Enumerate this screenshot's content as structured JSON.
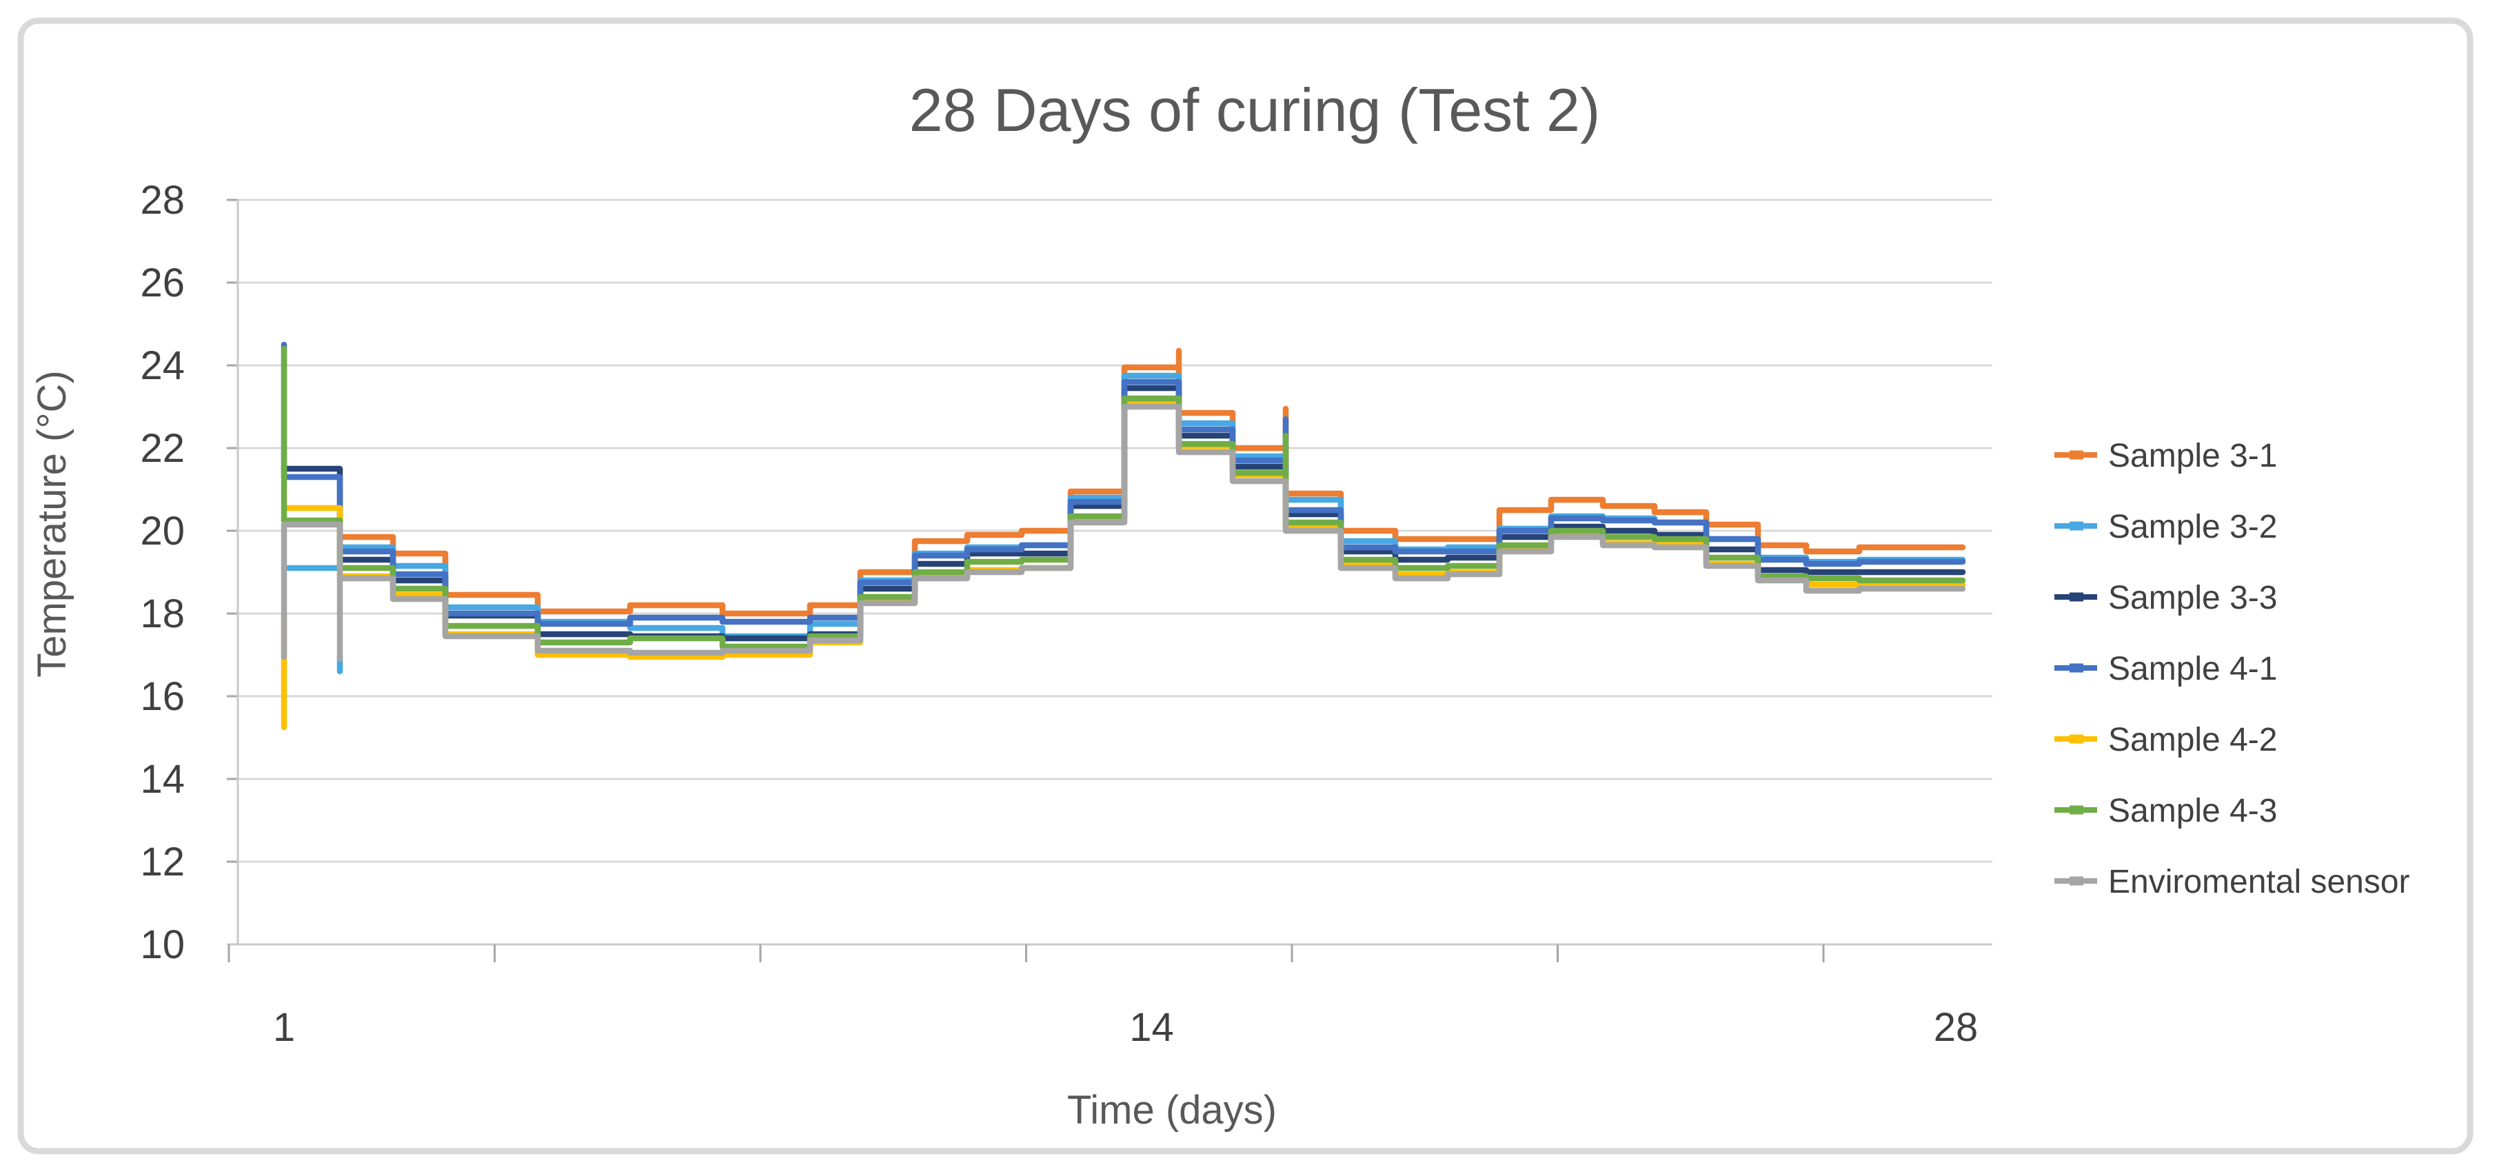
{
  "chart_data": {
    "type": "line",
    "title": "28 Days of curing (Test 2)",
    "xlabel": "Time (days)",
    "ylabel": "Temperature (°C)",
    "ylim": [
      10,
      28
    ],
    "y_tick_step": 2,
    "y_tick_labels": [
      28,
      26,
      24,
      22,
      20,
      18,
      16,
      14,
      12,
      10
    ],
    "xticks": [
      1,
      14,
      28
    ],
    "grid": true,
    "legend_position": "right",
    "x": [
      1,
      2,
      3,
      4,
      5,
      6,
      7,
      8,
      9,
      10,
      11,
      12,
      13,
      14,
      15,
      16,
      17,
      18,
      19,
      20,
      21,
      22,
      23,
      24,
      25,
      26,
      27,
      28
    ],
    "series": [
      {
        "name": "Sample 3-1",
        "color": "#ED7D31",
        "values": [
          null,
          19.85,
          19.45,
          18.45,
          18.05,
          18.2,
          18.0,
          18.2,
          19.0,
          19.75,
          19.9,
          20.0,
          20.95,
          23.95,
          22.85,
          22.0,
          20.9,
          20.0,
          19.8,
          19.8,
          20.5,
          20.75,
          20.6,
          20.45,
          20.15,
          19.65,
          19.5,
          19.6
        ]
      },
      {
        "name": "Sample 3-2",
        "color": "#47A8E4",
        "values": [
          19.1,
          19.6,
          19.15,
          18.15,
          17.8,
          17.65,
          17.45,
          17.75,
          18.8,
          19.45,
          19.6,
          19.65,
          20.8,
          23.75,
          22.6,
          21.8,
          20.75,
          19.75,
          19.55,
          19.6,
          20.05,
          20.35,
          20.3,
          20.2,
          19.8,
          19.35,
          19.25,
          19.3
        ]
      },
      {
        "name": "Sample 3-3",
        "color": "#264478",
        "values": [
          21.5,
          19.3,
          18.8,
          17.95,
          17.5,
          17.45,
          17.4,
          17.5,
          18.6,
          19.2,
          19.45,
          19.45,
          20.6,
          23.45,
          22.3,
          21.55,
          20.4,
          19.5,
          19.3,
          19.35,
          19.85,
          20.1,
          20.0,
          19.9,
          19.55,
          19.05,
          19.0,
          19.0
        ]
      },
      {
        "name": "Sample 4-1",
        "color": "#4472C4",
        "values": [
          21.3,
          19.5,
          18.95,
          18.0,
          17.75,
          17.9,
          17.8,
          17.9,
          18.75,
          19.4,
          19.55,
          19.65,
          20.7,
          23.6,
          22.45,
          21.7,
          20.5,
          19.6,
          19.5,
          19.5,
          20.0,
          20.3,
          20.25,
          20.2,
          19.8,
          19.3,
          19.2,
          19.25
        ]
      },
      {
        "name": "Sample 4-2",
        "color": "#FFC000",
        "values": [
          20.55,
          18.9,
          18.45,
          17.5,
          17.0,
          16.95,
          17.0,
          17.3,
          18.3,
          18.9,
          19.05,
          19.1,
          20.3,
          23.1,
          22.05,
          21.35,
          20.1,
          19.2,
          18.95,
          19.0,
          19.6,
          19.9,
          19.7,
          19.7,
          19.2,
          18.85,
          18.7,
          18.7
        ]
      },
      {
        "name": "Sample 4-3",
        "color": "#70AD47",
        "values": [
          20.25,
          19.1,
          18.6,
          17.7,
          17.3,
          17.4,
          17.2,
          17.45,
          18.4,
          19.0,
          19.25,
          19.3,
          20.35,
          23.2,
          22.1,
          21.4,
          20.2,
          19.3,
          19.1,
          19.15,
          19.65,
          20.0,
          19.85,
          19.8,
          19.35,
          18.9,
          18.85,
          18.8
        ]
      },
      {
        "name": "Enviromental sensor",
        "color": "#A5A5A5",
        "values": [
          20.15,
          18.85,
          18.35,
          17.45,
          17.1,
          17.05,
          17.1,
          17.35,
          18.25,
          18.85,
          19.0,
          19.1,
          20.2,
          23.0,
          21.9,
          21.2,
          20.0,
          19.1,
          18.85,
          18.95,
          19.5,
          19.85,
          19.65,
          19.6,
          19.15,
          18.8,
          18.55,
          18.6
        ]
      }
    ],
    "spikes": [
      {
        "series": "Sample 4-1",
        "day": 1,
        "from": 21.3,
        "to": 24.5
      },
      {
        "series": "Sample 4-3",
        "day": 1,
        "from": 20.25,
        "to": 24.4
      },
      {
        "series": "Enviromental sensor",
        "day": 1,
        "from": 20.15,
        "to": 16.95
      },
      {
        "series": "Sample 4-2",
        "day": 1,
        "from": 18.0,
        "to": 15.25
      },
      {
        "series": "Enviromental sensor",
        "day": 2,
        "from": 18.85,
        "to": 16.9
      },
      {
        "series": "Sample 3-2",
        "day": 2,
        "from": 16.95,
        "to": 16.6
      },
      {
        "series": "Sample 3-1",
        "day": 15,
        "from": 23.9,
        "to": 24.35
      },
      {
        "series": "Sample 3-1",
        "day": 17,
        "from": 22.0,
        "to": 22.95
      },
      {
        "series": "Sample 4-1",
        "day": 17,
        "from": 21.7,
        "to": 22.7
      },
      {
        "series": "Sample 4-3",
        "day": 17,
        "from": 21.4,
        "to": 22.3
      }
    ],
    "legend": [
      {
        "label": "Sample 3-1",
        "color": "#ED7D31"
      },
      {
        "label": "Sample 3-2",
        "color": "#47A8E4"
      },
      {
        "label": "Sample 3-3",
        "color": "#264478"
      },
      {
        "label": "Sample 4-1",
        "color": "#4472C4"
      },
      {
        "label": "Sample 4-2",
        "color": "#FFC000"
      },
      {
        "label": "Sample 4-3",
        "color": "#70AD47"
      },
      {
        "label": "Enviromental sensor",
        "color": "#A5A5A5"
      }
    ],
    "colors": {
      "gridline": "#D9D9D9",
      "axis_line": "#C9C9C9",
      "tick_mark": "#A6A6A6",
      "chart_border": "#D9D9D9",
      "title_text": "#595959",
      "tick_text": "#404040"
    }
  }
}
